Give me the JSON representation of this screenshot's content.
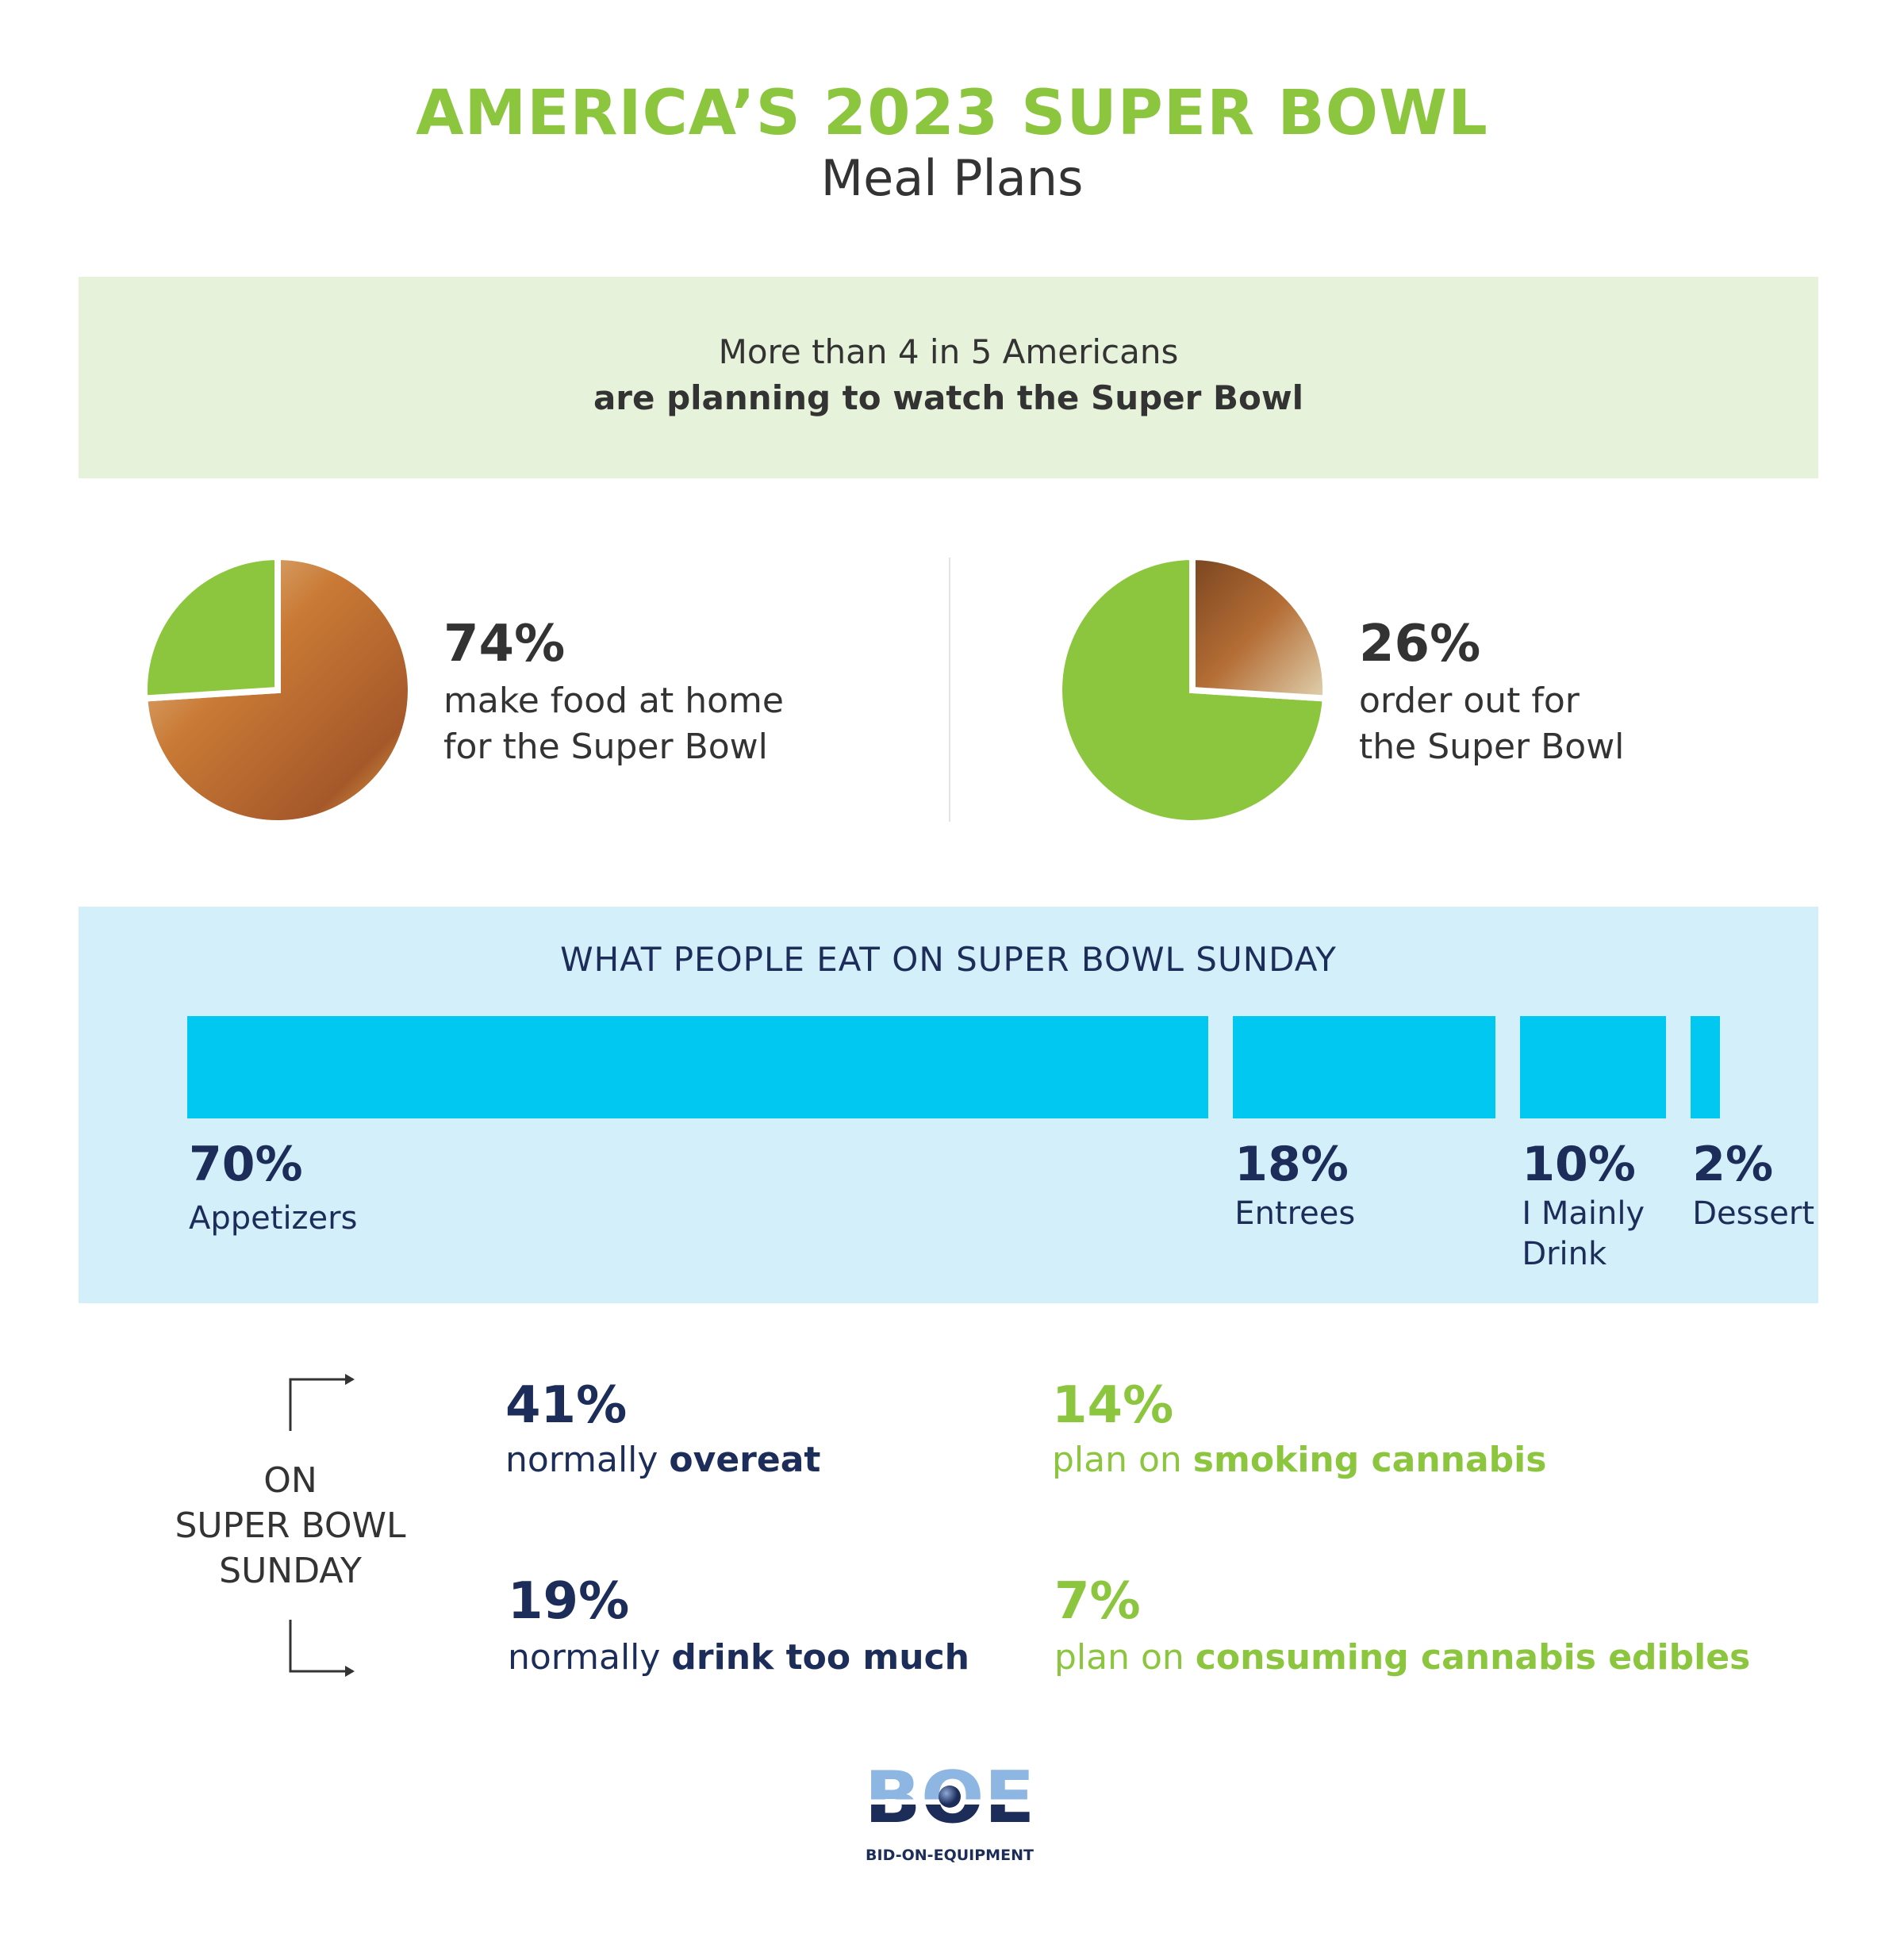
{
  "header": {
    "title": "AMERICA’S 2023 SUPER BOWL",
    "subtitle": "Meal Plans"
  },
  "banner": {
    "line1": "More than 4 in 5 Americans",
    "line2": "are planning to watch the Super Bowl"
  },
  "pies": [
    {
      "value": "74%",
      "line1": "make food at home",
      "line2": "for the Super Bowl",
      "percent": 74
    },
    {
      "value": "26%",
      "line1": "order out for",
      "line2": "the Super Bowl",
      "percent": 26
    }
  ],
  "chart_data": {
    "type": "bar",
    "title": "WHAT PEOPLE EAT ON SUPER BOWL SUNDAY",
    "categories": [
      "Appetizers",
      "Entrees",
      "I Mainly Drink",
      "Dessert"
    ],
    "values": [
      70,
      18,
      10,
      2
    ],
    "labels": [
      "70%",
      "18%",
      "10%",
      "2%"
    ],
    "label_lines": [
      [
        "Appetizers"
      ],
      [
        "Entrees"
      ],
      [
        "I Mainly",
        "Drink"
      ],
      [
        "Dessert"
      ]
    ]
  },
  "sunday": {
    "label": [
      "ON",
      "SUPER BOWL",
      "SUNDAY"
    ],
    "stats": [
      {
        "value": "41%",
        "pre": "normally ",
        "bold": "overeat"
      },
      {
        "value": "19%",
        "pre": "normally ",
        "bold": "drink too much"
      },
      {
        "value": "14%",
        "pre": "plan on ",
        "bold": "smoking cannabis"
      },
      {
        "value": "7%",
        "pre": "plan on ",
        "bold": "consuming cannabis edibles"
      }
    ]
  },
  "logo": {
    "mark": "BOE",
    "tagline": "BID-ON-EQUIPMENT"
  },
  "colors": {
    "green": "#8cc63f",
    "navy": "#1c2d5a",
    "cyan": "#00c8f0",
    "lightblue": "#d3effa",
    "lightgreen": "#e6f2d9"
  }
}
